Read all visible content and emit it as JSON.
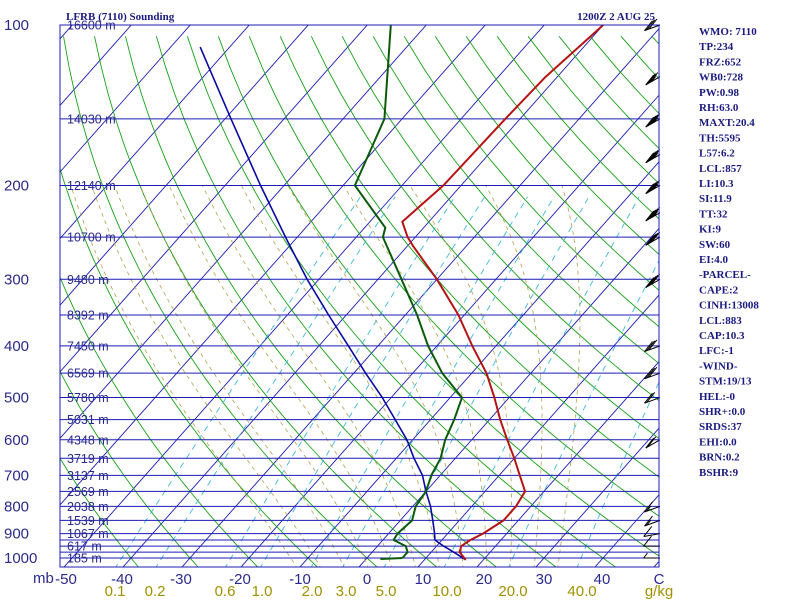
{
  "header": {
    "station_title": "LFRB (7110) Sounding",
    "time_title": "1200Z  2 AUG 25"
  },
  "indices": [
    "WMO: 7110",
    "TP:234",
    "FRZ:652",
    "WB0:728",
    "PW:0.98",
    "RH:63.0",
    "MAXT:20.4",
    "TH:5595",
    "L57:6.2",
    "LCL:857",
    "LI:10.3",
    "SI:11.9",
    "TT:32",
    "KI:9",
    "SW:60",
    "EI:4.0",
    "-PARCEL-",
    "CAPE:2",
    "CINH:13008",
    "LCL:883",
    "CAP:10.3",
    "LFC:-1",
    "-WIND-",
    "STM:19/13",
    "HEL:-0",
    "SHR+:0.0",
    "SRDS:37",
    "EHI:0.0",
    "BRN:0.2",
    "BSHR:9"
  ],
  "colors": {
    "isobar": "#1c1cb4",
    "isotherm": "#1c1cb4",
    "dry_adiabat": "#18a018",
    "moist_adiabat": "#b4a050",
    "mixing_ratio": "#40b8d8",
    "temperature": "#b41414",
    "dewpoint": "#0a5a0a",
    "parcel": "#0a0aa0",
    "labels": "#2a2a8c",
    "mixing_labels": "#a09000"
  },
  "chart_data": {
    "type": "skew-t",
    "y_unit": "mb",
    "x_unit_label": "C",
    "mixing_unit_label": "g/kg",
    "y_range_mb": [
      100,
      1050
    ],
    "x_range_C": [
      -50,
      0
    ],
    "grid": true,
    "pressure_tick_labels": [
      "100",
      "200",
      "300",
      "400",
      "500",
      "600",
      "700",
      "800",
      "900",
      "1000",
      "mb"
    ],
    "pressure_tick_values": [
      100,
      200,
      300,
      400,
      500,
      600,
      700,
      800,
      900,
      1000
    ],
    "temperature_tick_labels": [
      "-50",
      "-40",
      "-30",
      "-20",
      "-10",
      "0",
      "10",
      "20",
      "30",
      "40",
      "C"
    ],
    "temperature_tick_values": [
      -50,
      -40,
      -30,
      -20,
      -10,
      0,
      10,
      20,
      30,
      40,
      50
    ],
    "mixing_ratio_labels": [
      "0.1",
      "0.2",
      "0.6",
      "1.0",
      "2.0",
      "3.0",
      "5.0",
      "10.0",
      "20.0",
      "40.0",
      "g/kg"
    ],
    "isobars_mb": [
      100,
      150,
      200,
      250,
      300,
      350,
      400,
      450,
      500,
      550,
      600,
      650,
      700,
      750,
      800,
      850,
      900,
      925,
      950,
      975,
      1000
    ],
    "height_labels": [
      {
        "p": 100,
        "text": "16600 m"
      },
      {
        "p": 150,
        "text": "14030 m"
      },
      {
        "p": 200,
        "text": "12140 m"
      },
      {
        "p": 250,
        "text": "10700 m"
      },
      {
        "p": 300,
        "text": "9480 m"
      },
      {
        "p": 350,
        "text": "8392 m"
      },
      {
        "p": 400,
        "text": "7450 m"
      },
      {
        "p": 450,
        "text": "6569 m"
      },
      {
        "p": 500,
        "text": "5780 m"
      },
      {
        "p": 550,
        "text": "5031 m"
      },
      {
        "p": 600,
        "text": "4348 m"
      },
      {
        "p": 650,
        "text": "3719 m"
      },
      {
        "p": 700,
        "text": "3137 m"
      },
      {
        "p": 750,
        "text": "2569 m"
      },
      {
        "p": 800,
        "text": "2038 m"
      },
      {
        "p": 850,
        "text": "1539 m"
      },
      {
        "p": 900,
        "text": "1067 m"
      },
      {
        "p": 950,
        "text": "617 m"
      },
      {
        "p": 1000,
        "text": "185 m"
      }
    ],
    "series": [
      {
        "key": "temperature",
        "points": [
          {
            "p": 1008,
            "t": 17.0
          },
          {
            "p": 975,
            "t": 14.8
          },
          {
            "p": 950,
            "t": 14.2
          },
          {
            "p": 925,
            "t": 14.8
          },
          {
            "p": 900,
            "t": 16.0
          },
          {
            "p": 850,
            "t": 17.5
          },
          {
            "p": 800,
            "t": 17.5
          },
          {
            "p": 750,
            "t": 16.8
          },
          {
            "p": 700,
            "t": 13.5
          },
          {
            "p": 650,
            "t": 10.0
          },
          {
            "p": 600,
            "t": 6.0
          },
          {
            "p": 550,
            "t": 1.8
          },
          {
            "p": 500,
            "t": -2.5
          },
          {
            "p": 450,
            "t": -7.5
          },
          {
            "p": 400,
            "t": -14.0
          },
          {
            "p": 350,
            "t": -21.0
          },
          {
            "p": 300,
            "t": -30.0
          },
          {
            "p": 260,
            "t": -39.0
          },
          {
            "p": 250,
            "t": -41.3
          },
          {
            "p": 234,
            "t": -44.5
          },
          {
            "p": 200,
            "t": -43.0
          },
          {
            "p": 150,
            "t": -42.5
          },
          {
            "p": 125,
            "t": -42.0
          },
          {
            "p": 100,
            "t": -40.0
          }
        ]
      },
      {
        "key": "dewpoint",
        "points": [
          {
            "p": 1000,
            "t": 6.0
          },
          {
            "p": 975,
            "t": 6.0
          },
          {
            "p": 950,
            "t": 4.8
          },
          {
            "p": 925,
            "t": 1.8
          },
          {
            "p": 900,
            "t": 1.5
          },
          {
            "p": 850,
            "t": 2.0
          },
          {
            "p": 800,
            "t": 0.5
          },
          {
            "p": 750,
            "t": 0.0
          },
          {
            "p": 700,
            "t": -1.5
          },
          {
            "p": 650,
            "t": -2.5
          },
          {
            "p": 600,
            "t": -4.5
          },
          {
            "p": 550,
            "t": -6.0
          },
          {
            "p": 500,
            "t": -8.0
          },
          {
            "p": 450,
            "t": -15.0
          },
          {
            "p": 400,
            "t": -21.5
          },
          {
            "p": 350,
            "t": -28.0
          },
          {
            "p": 300,
            "t": -36.0
          },
          {
            "p": 250,
            "t": -45.5
          },
          {
            "p": 240,
            "t": -46.5
          },
          {
            "p": 200,
            "t": -58.0
          },
          {
            "p": 150,
            "t": -63.0
          },
          {
            "p": 100,
            "t": -76.0
          }
        ]
      },
      {
        "key": "parcel",
        "points": [
          {
            "p": 1008,
            "t": 17.0
          },
          {
            "p": 975,
            "t": 13.8
          },
          {
            "p": 950,
            "t": 11.2
          },
          {
            "p": 925,
            "t": 8.8
          },
          {
            "p": 900,
            "t": 7.8
          },
          {
            "p": 850,
            "t": 5.5
          },
          {
            "p": 800,
            "t": 3.0
          },
          {
            "p": 750,
            "t": 0.0
          },
          {
            "p": 700,
            "t": -3.0
          },
          {
            "p": 650,
            "t": -7.0
          },
          {
            "p": 600,
            "t": -11.0
          },
          {
            "p": 550,
            "t": -16.0
          },
          {
            "p": 500,
            "t": -21.5
          },
          {
            "p": 450,
            "t": -28.0
          },
          {
            "p": 400,
            "t": -35.0
          },
          {
            "p": 350,
            "t": -43.0
          },
          {
            "p": 300,
            "t": -52.0
          },
          {
            "p": 250,
            "t": -62.0
          },
          {
            "p": 200,
            "t": -74.0
          },
          {
            "p": 150,
            "t": -89.0
          },
          {
            "p": 110,
            "t": -105.0
          }
        ]
      }
    ],
    "wind_barbs": [
      {
        "p": 1000,
        "dir": 270,
        "spd": 5
      },
      {
        "p": 950,
        "dir": 270,
        "spd": 10
      },
      {
        "p": 900,
        "dir": 260,
        "spd": 10
      },
      {
        "p": 850,
        "dir": 250,
        "spd": 15
      },
      {
        "p": 800,
        "dir": 250,
        "spd": 15
      },
      {
        "p": 600,
        "dir": 240,
        "spd": 20
      },
      {
        "p": 500,
        "dir": 250,
        "spd": 20
      },
      {
        "p": 450,
        "dir": 250,
        "spd": 30
      },
      {
        "p": 400,
        "dir": 250,
        "spd": 30
      },
      {
        "p": 300,
        "dir": 240,
        "spd": 40
      },
      {
        "p": 250,
        "dir": 240,
        "spd": 40
      },
      {
        "p": 225,
        "dir": 240,
        "spd": 45
      },
      {
        "p": 200,
        "dir": 240,
        "spd": 45
      },
      {
        "p": 175,
        "dir": 240,
        "spd": 45
      },
      {
        "p": 150,
        "dir": 240,
        "spd": 45
      },
      {
        "p": 125,
        "dir": 240,
        "spd": 35
      },
      {
        "p": 100,
        "dir": 250,
        "spd": 30
      }
    ]
  }
}
